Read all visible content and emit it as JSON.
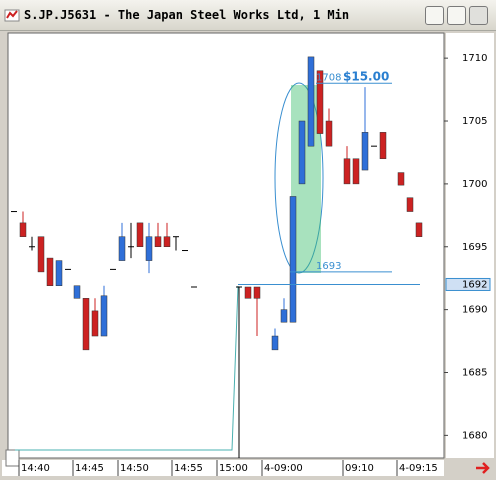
{
  "window": {
    "title": "S.JP.J5631 - The Japan Steel Works Ltd, 1 Min"
  },
  "chart_data": {
    "type": "candlestick",
    "categories": [
      null,
      "14:40",
      null,
      null,
      null,
      null,
      null,
      "14:45",
      null,
      null,
      null,
      null,
      "14:50",
      null,
      null,
      null,
      null,
      null,
      "14:55",
      null,
      null,
      null,
      null,
      "15:00",
      null,
      null,
      null,
      null,
      "4-09:00",
      null,
      null,
      null,
      null,
      null,
      null,
      null,
      null,
      "09:10",
      null,
      null,
      null,
      null,
      null,
      "4-09:15",
      null,
      null
    ],
    "open": [
      1697.8,
      1696.9,
      1695.0,
      1695.8,
      1694.1,
      1691.9,
      1693.2,
      1690.9,
      1690.9,
      1689.9,
      1687.9,
      1693.2,
      1693.9,
      1695.0,
      1696.9,
      1693.9,
      1695.8,
      1695.8,
      1695.8,
      1694.7,
      1691.8,
      null,
      null,
      null,
      null,
      1691.8,
      1691.8,
      1691.8,
      null,
      1686.8,
      1689.0,
      1689.0,
      1700.0,
      1703.0,
      1709.0,
      1705.0,
      null,
      1702.0,
      1702.0,
      1701.1,
      1703.0,
      1704.1,
      null,
      1700.9,
      1698.9,
      1696.9
    ],
    "high": [
      1697.8,
      1697.8,
      1695.8,
      1695.8,
      1694.1,
      1693.9,
      1693.2,
      1691.9,
      1690.9,
      1690.9,
      1691.9,
      1693.2,
      1696.9,
      1696.9,
      1696.9,
      1696.9,
      1696.9,
      1696.9,
      1695.8,
      1694.7,
      1691.8,
      null,
      null,
      null,
      null,
      1691.8,
      1691.8,
      1691.8,
      null,
      1688.5,
      1690.9,
      1699.0,
      1705.0,
      1710.1,
      1709.0,
      1706.0,
      null,
      1703.0,
      1702.0,
      1707.7,
      1703.0,
      1704.1,
      null,
      1700.9,
      1698.9,
      1696.9
    ],
    "low": [
      1697.8,
      1695.8,
      1694.7,
      1693.0,
      1691.9,
      1691.9,
      1693.2,
      1690.9,
      1686.8,
      1687.9,
      1687.9,
      1693.2,
      1693.9,
      1694.1,
      1695.0,
      1692.9,
      1695.0,
      1695.0,
      1694.7,
      1694.7,
      1691.8,
      null,
      null,
      null,
      null,
      1678.2,
      1690.9,
      1687.9,
      null,
      1686.8,
      1689.0,
      1689.0,
      1700.0,
      1703.0,
      1704.0,
      1703.0,
      null,
      1700.0,
      1700.0,
      1701.1,
      1703.0,
      1702.0,
      null,
      1699.9,
      1697.8,
      1695.8
    ],
    "close": [
      1697.8,
      1695.8,
      1695.0,
      1693.0,
      1691.9,
      1693.9,
      1693.2,
      1691.9,
      1686.8,
      1687.9,
      1691.1,
      1693.2,
      1695.8,
      1695.0,
      1695.0,
      1695.8,
      1695.0,
      1695.0,
      1695.8,
      1694.7,
      1691.8,
      null,
      null,
      null,
      null,
      1691.8,
      1690.9,
      1690.9,
      null,
      1687.9,
      1690.0,
      1699.0,
      1705.0,
      1710.1,
      1704.0,
      1703.0,
      null,
      1700.0,
      1700.0,
      1704.1,
      1703.0,
      1702.0,
      null,
      1699.9,
      1697.8,
      1695.8
    ],
    "up_color": "#2f6fd8",
    "down_color": "#cc2222",
    "ylim": [
      1678.2,
      1712.0
    ],
    "yticks": [
      1680,
      1685,
      1690,
      1695,
      1700,
      1705,
      1710
    ],
    "levels": [
      1708,
      1693
    ],
    "annotation": "$15.00",
    "last_price": 1692
  }
}
